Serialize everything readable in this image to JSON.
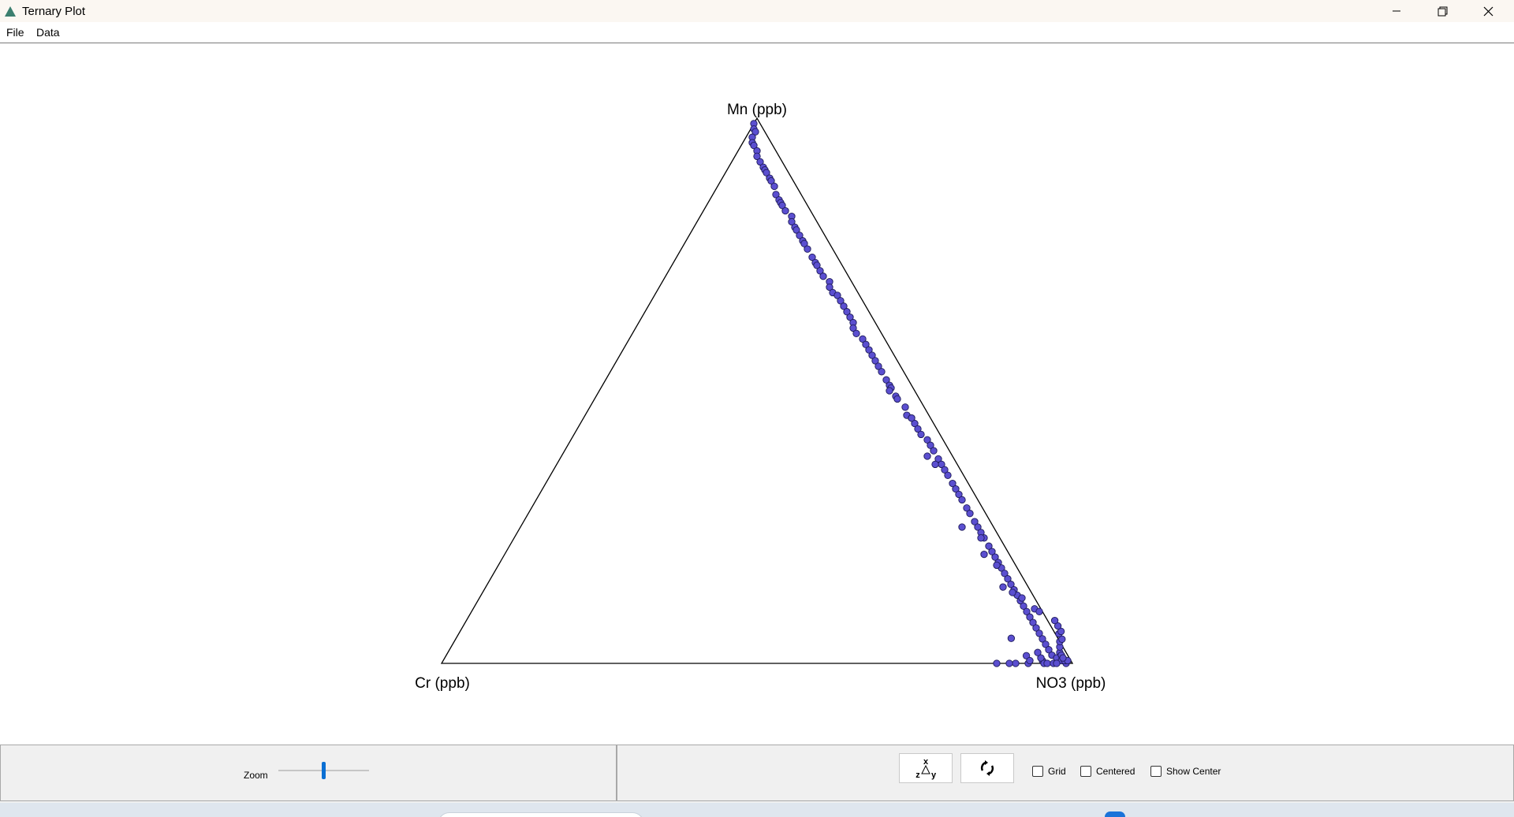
{
  "window": {
    "title": "Ternary Plot",
    "icon": "triangle-app-icon",
    "controls": [
      "minimize-icon",
      "maximize-icon",
      "close-icon"
    ]
  },
  "menu": {
    "items": [
      "File",
      "Data"
    ]
  },
  "chart_data": {
    "type": "scatter",
    "subtype": "ternary",
    "vertices": {
      "top": "Mn (ppb)",
      "left": "Cr (ppb)",
      "right": "NO3 (ppb)"
    },
    "grid": false,
    "point_color": "#5b4fd0",
    "point_stroke": "#1e1b5a",
    "points": [
      [
        0.0,
        0.99
      ],
      [
        0.005,
        0.98
      ],
      [
        0.01,
        0.975
      ],
      [
        0.01,
        0.965
      ],
      [
        0.015,
        0.955
      ],
      [
        0.02,
        0.95
      ],
      [
        0.03,
        0.94
      ],
      [
        0.035,
        0.93
      ],
      [
        0.045,
        0.92
      ],
      [
        0.055,
        0.91
      ],
      [
        0.06,
        0.905
      ],
      [
        0.065,
        0.9
      ],
      [
        0.075,
        0.89
      ],
      [
        0.08,
        0.885
      ],
      [
        0.09,
        0.875
      ],
      [
        0.1,
        0.86
      ],
      [
        0.11,
        0.85
      ],
      [
        0.115,
        0.845
      ],
      [
        0.12,
        0.84
      ],
      [
        0.13,
        0.83
      ],
      [
        0.145,
        0.82
      ],
      [
        0.15,
        0.81
      ],
      [
        0.16,
        0.8
      ],
      [
        0.165,
        0.795
      ],
      [
        0.175,
        0.785
      ],
      [
        0.185,
        0.775
      ],
      [
        0.19,
        0.77
      ],
      [
        0.2,
        0.76
      ],
      [
        0.215,
        0.745
      ],
      [
        0.225,
        0.735
      ],
      [
        0.23,
        0.73
      ],
      [
        0.24,
        0.72
      ],
      [
        0.25,
        0.71
      ],
      [
        0.265,
        0.7
      ],
      [
        0.27,
        0.69
      ],
      [
        0.28,
        0.68
      ],
      [
        0.29,
        0.675
      ],
      [
        0.3,
        0.665
      ],
      [
        0.31,
        0.655
      ],
      [
        0.32,
        0.645
      ],
      [
        0.33,
        0.635
      ],
      [
        0.34,
        0.625
      ],
      [
        0.345,
        0.615
      ],
      [
        0.355,
        0.605
      ],
      [
        0.37,
        0.595
      ],
      [
        0.38,
        0.585
      ],
      [
        0.39,
        0.575
      ],
      [
        0.4,
        0.565
      ],
      [
        0.41,
        0.555
      ],
      [
        0.42,
        0.545
      ],
      [
        0.43,
        0.535
      ],
      [
        0.445,
        0.52
      ],
      [
        0.455,
        0.51
      ],
      [
        0.46,
        0.505
      ],
      [
        0.475,
        0.49
      ],
      [
        0.48,
        0.485
      ],
      [
        0.5,
        0.47
      ],
      [
        0.51,
        0.455
      ],
      [
        0.52,
        0.45
      ],
      [
        0.53,
        0.44
      ],
      [
        0.54,
        0.43
      ],
      [
        0.55,
        0.42
      ],
      [
        0.565,
        0.41
      ],
      [
        0.575,
        0.4
      ],
      [
        0.585,
        0.39
      ],
      [
        0.6,
        0.375
      ],
      [
        0.61,
        0.365
      ],
      [
        0.62,
        0.355
      ],
      [
        0.63,
        0.345
      ],
      [
        0.645,
        0.33
      ],
      [
        0.655,
        0.32
      ],
      [
        0.665,
        0.31
      ],
      [
        0.675,
        0.3
      ],
      [
        0.69,
        0.285
      ],
      [
        0.7,
        0.275
      ],
      [
        0.715,
        0.26
      ],
      [
        0.725,
        0.25
      ],
      [
        0.735,
        0.24
      ],
      [
        0.745,
        0.23
      ],
      [
        0.76,
        0.215
      ],
      [
        0.77,
        0.205
      ],
      [
        0.78,
        0.195
      ],
      [
        0.79,
        0.185
      ],
      [
        0.8,
        0.175
      ],
      [
        0.81,
        0.165
      ],
      [
        0.82,
        0.155
      ],
      [
        0.83,
        0.145
      ],
      [
        0.84,
        0.135
      ],
      [
        0.85,
        0.125
      ],
      [
        0.86,
        0.115
      ],
      [
        0.87,
        0.105
      ],
      [
        0.88,
        0.095
      ],
      [
        0.89,
        0.085
      ],
      [
        0.9,
        0.075
      ],
      [
        0.91,
        0.065
      ],
      [
        0.92,
        0.055
      ],
      [
        0.93,
        0.045
      ],
      [
        0.94,
        0.035
      ],
      [
        0.95,
        0.025
      ],
      [
        0.96,
        0.015
      ],
      [
        0.97,
        0.01
      ],
      [
        0.98,
        0.005
      ],
      [
        0.99,
        0.0
      ],
      [
        0.95,
        0.005
      ],
      [
        0.945,
        0.01
      ],
      [
        0.935,
        0.02
      ],
      [
        0.955,
        0.0
      ],
      [
        0.93,
        0.0
      ],
      [
        0.96,
        0.0
      ],
      [
        0.97,
        0.0
      ],
      [
        0.975,
        0.0
      ],
      [
        0.985,
        0.005
      ],
      [
        0.99,
        0.005
      ],
      [
        0.97,
        0.02
      ],
      [
        0.975,
        0.015
      ],
      [
        0.965,
        0.03
      ],
      [
        0.98,
        0.01
      ],
      [
        0.96,
        0.04
      ],
      [
        0.955,
        0.05
      ],
      [
        0.945,
        0.06
      ],
      [
        0.94,
        0.07
      ],
      [
        0.93,
        0.08
      ],
      [
        0.92,
        0.09
      ],
      [
        0.89,
        0.1
      ],
      [
        0.9,
        0.095
      ],
      [
        0.86,
        0.12
      ],
      [
        0.82,
        0.14
      ],
      [
        0.84,
        0.13
      ],
      [
        0.79,
        0.18
      ],
      [
        0.76,
        0.2
      ],
      [
        0.7,
        0.25
      ],
      [
        0.74,
        0.23
      ],
      [
        0.6,
        0.365
      ],
      [
        0.58,
        0.38
      ],
      [
        0.46,
        0.5
      ],
      [
        0.52,
        0.45
      ],
      [
        0.88,
        0.046
      ],
      [
        0.92,
        0.014
      ],
      [
        0.91,
        0.0
      ],
      [
        0.88,
        0.0
      ],
      [
        0.9,
        0.0
      ],
      [
        0.93,
        0.005
      ]
    ]
  },
  "controls": {
    "zoom_label": "Zoom",
    "zoom_value": 0.5,
    "swap_axes_icon": "swap-axes-icon",
    "rotate_icon": "rotate-icon",
    "grid_label": "Grid",
    "grid_checked": false,
    "centered_label": "Centered",
    "centered_checked": false,
    "show_center_label": "Show Center",
    "show_center_checked": false
  }
}
